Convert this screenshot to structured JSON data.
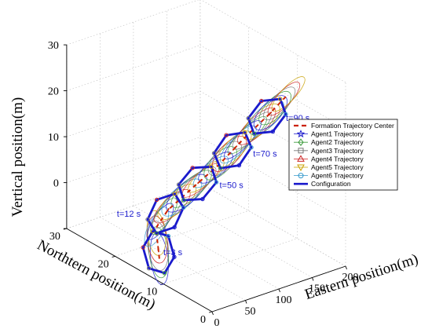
{
  "chart_data": {
    "type": "line",
    "title": "",
    "xlabel": "Eastern position(m)",
    "ylabel": "Northtern position(m)",
    "zlabel": "Vertical position(m)",
    "xlim": [
      0,
      200
    ],
    "ylim": [
      0,
      30
    ],
    "zlim": [
      -10,
      30
    ],
    "x_ticks": [
      "0",
      "50",
      "100",
      "150",
      "200"
    ],
    "y_ticks": [
      "0",
      "10",
      "20",
      "30"
    ],
    "z_ticks": [
      "0",
      "10",
      "20",
      "30"
    ],
    "grid": true,
    "legend_position": "right",
    "legend": [
      {
        "label": "Formation Trajectory Center",
        "color": "#cc2200",
        "marker": "dash"
      },
      {
        "label": "Agent1 Trajectory",
        "color": "#1a1acc",
        "marker": "star"
      },
      {
        "label": "Agent2 Trajectory",
        "color": "#3a9a3a",
        "marker": "diamond"
      },
      {
        "label": "Agent3 Trajectory",
        "color": "#777777",
        "marker": "square"
      },
      {
        "label": "Agent4 Trajectory",
        "color": "#cc2222",
        "marker": "triangle-up"
      },
      {
        "label": "Agent5 Trajectory",
        "color": "#c8a000",
        "marker": "triangle-down"
      },
      {
        "label": "Agent6 Trajectory",
        "color": "#3399cc",
        "marker": "circle"
      },
      {
        "label": "Configuration",
        "color": "#1a1acc",
        "marker": "line"
      }
    ],
    "center_path": [
      [
        30,
        15,
        -9
      ],
      [
        32,
        16,
        -3
      ],
      [
        50,
        16,
        0
      ],
      [
        80,
        15,
        4
      ],
      [
        105,
        13,
        9
      ],
      [
        130,
        11,
        15
      ],
      [
        150,
        9,
        20
      ],
      [
        165,
        7,
        25
      ]
    ],
    "formation_radius": 5,
    "annotations": [
      {
        "text": "t=3 s",
        "at": [
          30,
          15,
          -9
        ]
      },
      {
        "text": "t=12 s",
        "at": [
          32,
          16,
          -3
        ]
      },
      {
        "text": "t=50 s",
        "at": [
          80,
          15,
          4
        ]
      },
      {
        "text": "t=70 s",
        "at": [
          130,
          11,
          15
        ]
      },
      {
        "text": "t=90 s",
        "at": [
          165,
          7,
          25
        ]
      }
    ]
  }
}
